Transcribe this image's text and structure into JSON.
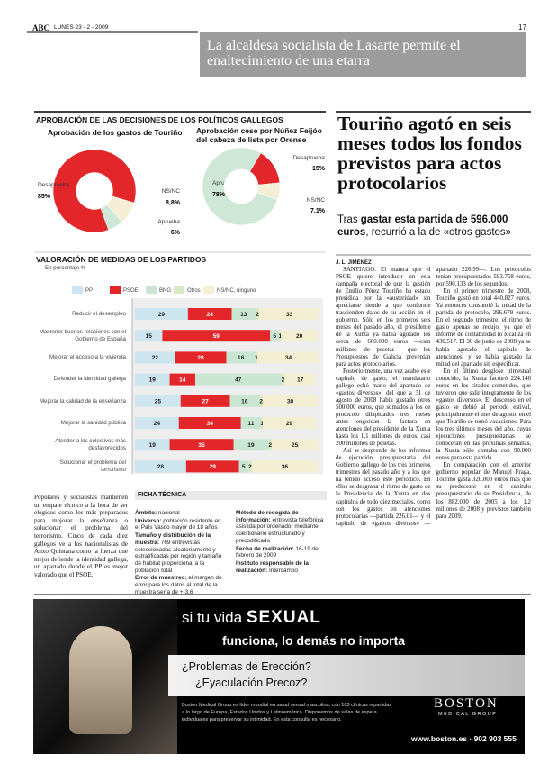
{
  "header": {
    "paper": "ABC",
    "date": "LUNES 23 - 2 - 2009",
    "page": "17"
  },
  "banner": "La alcaldesa socialista de Lasarte permite el enaltecimiento de una etarra",
  "charts_title": "APROBACIÓN DE LAS DECISIONES DE LOS POLÍTICOS GALLEGOS",
  "chart_data": [
    {
      "type": "pie",
      "title": "Aprobación de los gastos de Touriño",
      "categories": [
        "Desaprueba",
        "NS/NC",
        "Aprueba"
      ],
      "values": [
        85,
        8.8,
        6
      ],
      "value_labels": [
        "85%",
        "8,8%",
        "6%"
      ],
      "colors": [
        "#e3262a",
        "#f4efd4",
        "#cfe7d6"
      ]
    },
    {
      "type": "pie",
      "title": "Aprobación cese por Núñez Feijóo del cabeza de lista por Orense",
      "categories": [
        "Aprueba",
        "Desaprueba",
        "NS/NC"
      ],
      "values": [
        78,
        15,
        7.1
      ],
      "value_labels": [
        "78%",
        "15%",
        "7,1%"
      ],
      "colors": [
        "#cfe7d6",
        "#e3262a",
        "#f4efd4"
      ]
    },
    {
      "type": "bar",
      "orientation": "horizontal",
      "stacked": true,
      "title": "VALORACIÓN DE MEDIDAS DE LOS PARTIDOS",
      "subtitle": "En porcentaje %",
      "categories": [
        "Reducir el desempleo",
        "Mantener buenas relaciones con el Gobierno de España",
        "Mejorar el acceso a la vivienda",
        "Defender la identidad gallega",
        "Mejorar la calidad de la enseñanza",
        "Mejorar la sanidad pública",
        "Atender a los colectivos más desfavorecidos",
        "Solucionar el problema del terrorismo"
      ],
      "xlim": [
        0,
        101
      ],
      "series": [
        {
          "name": "PP",
          "color": "#cde5ef",
          "values": [
            29,
            15,
            22,
            19,
            25,
            24,
            19,
            28
          ]
        },
        {
          "name": "PSOE",
          "color": "#e3262a",
          "values": [
            24,
            59,
            28,
            14,
            27,
            34,
            35,
            29
          ]
        },
        {
          "name": "BNG",
          "color": "#c9e6d3",
          "values": [
            13,
            5,
            16,
            47,
            16,
            11,
            19,
            5
          ]
        },
        {
          "name": "Otros",
          "color": "#d9e9c3",
          "values": [
            2,
            1,
            1,
            2,
            2,
            1,
            2,
            2
          ]
        },
        {
          "name": "NS/NC, ninguno",
          "color": "#f4efd2",
          "values": [
            33,
            20,
            34,
            17,
            30,
            29,
            25,
            36
          ]
        }
      ]
    }
  ],
  "left_text": "Populares y socialistas mantienen un empate técnico a la hora de ser elegidos como los más preparados para mejorar la enseñanza o solucionar el problema del terrorismo. Cinco de cada diez gallegos ve a los nacionalistas de Anxo Quintana como la fuerza que mejor defiende la identidad gallega, un apartado donde el PP es mejor valorado que el PSOE.",
  "ficha": {
    "title": "FICHA TÉCNICA",
    "columns": [
      [
        {
          "label": "Ámbito:",
          "text": "nacional"
        },
        {
          "label": "Universo:",
          "text": "población residente en el País Vasco mayor de 18 años"
        },
        {
          "label": "Tamaño y distribución de la muestra:",
          "text": "769 entrevistas seleccionadas aleatoriamente y estratificadas por región y tamaño de hábitat proporcional a la población total"
        },
        {
          "label": "Error de muestreo:",
          "text": "el margen de error para los datos al total de la muestra sería de +-3,6"
        }
      ],
      [
        {
          "label": "Método de recogida de información:",
          "text": "entrevista telefónica asistida por ordenador mediante cuestionario estructurado y precodificado"
        },
        {
          "label": "Fecha de realización:",
          "text": "16-19 de febrero de 2009"
        },
        {
          "label": "Instituto responsable de la realización:",
          "text": "Intercampo"
        }
      ]
    ]
  },
  "article": {
    "title": "Touriño agotó en seis meses todos los fondos previstos para actos protocolarios",
    "subtitle": [
      "Tras ",
      "gastar esta partida de 596.000 euros",
      ", recurrió a la de «otros gastos»"
    ],
    "byline": "J. L. JIMÉNEZ",
    "paragraphs": [
      "SANTIAGO. El mantra que el PSOE quiere introducir en esta campaña electoral de que la gestión de Emilio Pérez Touriño ha estado presidida por la «austeridad» sin apreciarse tiende a que conforme trascienden datos de su acción en el gobierno. Sólo en los primeros seis meses del pasado año, el presidente de la Xunta ya había agotado los cerca de 600.000 euros —cien millones de pesetas— que los Presupuestos de Galicia prevenían para actos protocolarios.",
      "Posteriormente, una vez acabó este capítulo de gasto, el mandatario gallego echó mano del apartado de «gastos diversos», del que a 31 de agosto de 2008 había gastado otros 500.000 euros, que sumados a los de protocolo dilapidados tres meses antes engordan la factura en atenciones del presidente de la Xunta hasta los 1,1 millones de euros, casi 200 millones de pesetas.",
      "Así se desprende de los informes de ejecución presupuestaria del Gobierno gallego de los tres primeros trimestres del pasado año y a los que ha tenido acceso este periódico. En ellos se desgrana el ritmo de gasto de la Presidencia de la Xunta en dos capítulos de todo diez meciales, como son los gastos en atenciones protocolarias —partida 226.01— y el capítulo de «gastos diversos» —apartado 226.99—. Los protocolos tenían presupuestados 593.758 euros, por 590.133 de los segundos.",
      "En el primer trimestre de 2008, Touriño gastó en total 440.827 euros. Ya entonces consumió la mitad de la partida de protocolo, 296.679 euros. En el segundo trimestre, el ritmo de gasto apenas se redujo, ya que el informe de contabilidad lo localiza en 430.517. El 30 de junio de 2008 ya se había agotado el capítulo de atenciones, y se había gastado la mitad del apartado sin especificar.",
      "En el último desglose trimestral conocido, la Xunta facturó 224.146 euros en los citados cometidos, que tuvieron que salir íntegramente de los «gastos diversos». El descenso en el gasto se debió al periodo estival, principalmente el mes de agosto, en el que Touriño se tomó vacaciones. Para los tres últimos meses del año, cuyas ejecuciones presupuestarias se conocerán en las próximas semanas, la Xunta sólo contaba con 90.000 euros para esta partida.",
      "En comparación con el anterior gobierno popular de Manuel Fraga, Touriño gasta 320.000 euros más que su predecesor en el capítulo presupuestario de su Presidencia, de los 882.000 de 2005 a los 1,2 millones de 2008 y previstos también para 2009."
    ]
  },
  "ad": {
    "line1": "si tu vida",
    "line1_bold": "SEXUAL",
    "line2": "funciona, lo demás no importa",
    "question1": "¿Problemas de Erección?",
    "question2": "¿Eyaculación Precoz?",
    "body": "Boston Medical Group es líder mundial en salud sexual masculina, con 103 clínicas repartidas a lo largo de Europa, Estados Unidos y Latinoamérica. Disponemos de salas de espera individuales para preservar su intimidad. En esta consulta es necesario.",
    "brand": "BOSTON",
    "brand_sub": "MEDICAL GROUP",
    "contact": "www.boston.es · 902 903 555"
  }
}
